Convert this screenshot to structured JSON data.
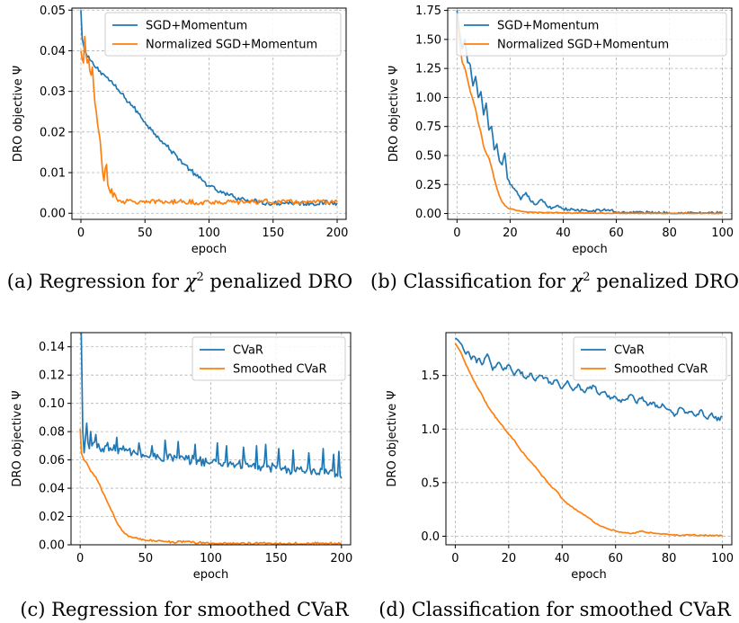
{
  "colors": {
    "blue": "#1f77b4",
    "orange": "#ff7f0e",
    "grid": "#b0b0b0"
  },
  "captions": {
    "a": {
      "prefix": "(a)  Regression for ",
      "symbol": "χ",
      "sup": "2",
      "suffix": " penalized DRO"
    },
    "b": {
      "prefix": "(b)  Classification for ",
      "symbol": "χ",
      "sup": "2",
      "suffix": " penalized DRO"
    },
    "c": {
      "text": "(c)  Regression for smoothed CVaR"
    },
    "d": {
      "text": "(d)  Classification for smoothed CVaR"
    }
  },
  "chart_data": [
    {
      "id": "a",
      "type": "line",
      "xlabel": "epoch",
      "ylabel": "DRO objective Ψ",
      "xlim": [
        -7,
        207
      ],
      "ylim": [
        -0.0015,
        0.0505
      ],
      "xticks": [
        0,
        50,
        100,
        150,
        200
      ],
      "yticks": [
        0.0,
        0.01,
        0.02,
        0.03,
        0.04,
        0.05
      ],
      "ytick_labels": [
        "0.00",
        "0.01",
        "0.02",
        "0.03",
        "0.04",
        "0.05"
      ],
      "grid": true,
      "legend": "top-right",
      "series": [
        {
          "name": "SGD+Momentum",
          "color": "#1f77b4",
          "x": [
            0,
            1,
            3,
            5,
            10,
            15,
            20,
            25,
            30,
            35,
            40,
            45,
            50,
            55,
            60,
            65,
            70,
            75,
            80,
            85,
            90,
            95,
            100,
            105,
            110,
            115,
            120,
            125,
            130,
            135,
            140,
            145,
            150,
            160,
            170,
            180,
            190,
            200
          ],
          "y": [
            0.05,
            0.043,
            0.04,
            0.0385,
            0.0365,
            0.035,
            0.0335,
            0.0318,
            0.03,
            0.0282,
            0.0265,
            0.0245,
            0.0225,
            0.0205,
            0.019,
            0.0172,
            0.0155,
            0.014,
            0.0122,
            0.0108,
            0.0092,
            0.008,
            0.0068,
            0.0058,
            0.005,
            0.0045,
            0.004,
            0.0036,
            0.0033,
            0.003,
            0.0028,
            0.0025,
            0.0025,
            0.0026,
            0.0025,
            0.0024,
            0.0026,
            0.0025
          ],
          "noise": 0.0006
        },
        {
          "name": "Normalized SGD+Momentum",
          "color": "#ff7f0e",
          "x": [
            0,
            1,
            2,
            3,
            4,
            5,
            6,
            7,
            8,
            9,
            10,
            11,
            12,
            13,
            14,
            15,
            16,
            17,
            18,
            19,
            20,
            21,
            22,
            23,
            24,
            25,
            26,
            28,
            30,
            35,
            40,
            50,
            60,
            70,
            80,
            90,
            100,
            120,
            140,
            160,
            180,
            200
          ],
          "y": [
            0.04,
            0.038,
            0.037,
            0.0435,
            0.039,
            0.037,
            0.038,
            0.035,
            0.034,
            0.036,
            0.031,
            0.027,
            0.025,
            0.022,
            0.02,
            0.018,
            0.014,
            0.01,
            0.008,
            0.011,
            0.012,
            0.007,
            0.006,
            0.005,
            0.006,
            0.004,
            0.005,
            0.0035,
            0.0032,
            0.0028,
            0.003,
            0.0025,
            0.003,
            0.0027,
            0.003,
            0.0026,
            0.0028,
            0.0027,
            0.0029,
            0.0028,
            0.0027,
            0.0028
          ],
          "noise": 0.0006
        }
      ]
    },
    {
      "id": "b",
      "type": "line",
      "xlabel": "epoch",
      "ylabel": "DRO objective Ψ",
      "xlim": [
        -3.5,
        103.5
      ],
      "ylim": [
        -0.05,
        1.77
      ],
      "xticks": [
        0,
        20,
        40,
        60,
        80,
        100
      ],
      "yticks": [
        0.0,
        0.25,
        0.5,
        0.75,
        1.0,
        1.25,
        1.5,
        1.75
      ],
      "ytick_labels": [
        "0.00",
        "0.25",
        "0.50",
        "0.75",
        "1.00",
        "1.25",
        "1.50",
        "1.75"
      ],
      "grid": true,
      "legend": "top-right",
      "series": [
        {
          "name": "SGD+Momentum",
          "color": "#1f77b4",
          "x": [
            0,
            1,
            2,
            3,
            4,
            5,
            6,
            7,
            8,
            9,
            10,
            11,
            12,
            13,
            14,
            15,
            16,
            17,
            18,
            19,
            20,
            22,
            24,
            26,
            28,
            30,
            32,
            34,
            36,
            38,
            40,
            45,
            50,
            55,
            58,
            60,
            65,
            70,
            80,
            90,
            100
          ],
          "y": [
            1.75,
            1.55,
            1.42,
            1.5,
            1.3,
            1.28,
            1.1,
            1.18,
            1.0,
            1.05,
            0.85,
            0.95,
            0.72,
            0.75,
            0.55,
            0.6,
            0.45,
            0.42,
            0.52,
            0.3,
            0.25,
            0.2,
            0.12,
            0.18,
            0.1,
            0.08,
            0.12,
            0.06,
            0.05,
            0.07,
            0.04,
            0.03,
            0.02,
            0.03,
            0.03,
            0.01,
            0.01,
            0.01,
            0.005,
            0.005,
            0.005
          ],
          "noise": 0.012
        },
        {
          "name": "Normalized SGD+Momentum",
          "color": "#ff7f0e",
          "x": [
            0,
            1,
            2,
            3,
            4,
            5,
            6,
            7,
            8,
            9,
            10,
            11,
            12,
            13,
            14,
            15,
            16,
            17,
            18,
            19,
            20,
            22,
            24,
            26,
            30,
            35,
            40,
            50,
            60,
            80,
            100
          ],
          "y": [
            1.7,
            1.45,
            1.3,
            1.25,
            1.15,
            1.05,
            0.98,
            0.9,
            0.78,
            0.7,
            0.58,
            0.52,
            0.48,
            0.4,
            0.3,
            0.22,
            0.15,
            0.1,
            0.07,
            0.05,
            0.04,
            0.03,
            0.02,
            0.015,
            0.01,
            0.008,
            0.005,
            0.003,
            0.002,
            0.001,
            0.001
          ],
          "noise": 0.004
        }
      ]
    },
    {
      "id": "c",
      "type": "line",
      "xlabel": "epoch",
      "ylabel": "DRO objective Ψ",
      "xlim": [
        -7,
        207
      ],
      "ylim": [
        0.0,
        0.15
      ],
      "xticks": [
        0,
        50,
        100,
        150,
        200
      ],
      "yticks": [
        0.0,
        0.02,
        0.04,
        0.06,
        0.08,
        0.1,
        0.12,
        0.14
      ],
      "ytick_labels": [
        "0.00",
        "0.02",
        "0.04",
        "0.06",
        "0.08",
        "0.10",
        "0.12",
        "0.14"
      ],
      "grid": true,
      "legend": "top-right",
      "series": [
        {
          "name": "CVaR",
          "color": "#1f77b4",
          "x": [
            0,
            2,
            3,
            4,
            5,
            6,
            7,
            8,
            9,
            10,
            15,
            20,
            25,
            30,
            40,
            50,
            60,
            70,
            80,
            90,
            100,
            110,
            120,
            130,
            140,
            150,
            160,
            170,
            180,
            190,
            196,
            198,
            200
          ],
          "y": [
            0.2,
            0.08,
            0.065,
            0.075,
            0.085,
            0.072,
            0.068,
            0.08,
            0.07,
            0.072,
            0.068,
            0.07,
            0.067,
            0.068,
            0.065,
            0.063,
            0.062,
            0.062,
            0.06,
            0.06,
            0.058,
            0.058,
            0.057,
            0.056,
            0.055,
            0.054,
            0.053,
            0.052,
            0.051,
            0.05,
            0.05,
            0.047,
            0.047
          ],
          "noise": 0.0035,
          "spikes": [
            [
              5,
              0.086
            ],
            [
              12,
              0.078
            ],
            [
              28,
              0.076
            ],
            [
              45,
              0.072
            ],
            [
              55,
              0.07
            ],
            [
              65,
              0.074
            ],
            [
              75,
              0.073
            ],
            [
              88,
              0.071
            ],
            [
              105,
              0.072
            ],
            [
              112,
              0.07
            ],
            [
              125,
              0.069
            ],
            [
              135,
              0.07
            ],
            [
              142,
              0.071
            ],
            [
              152,
              0.068
            ],
            [
              163,
              0.067
            ],
            [
              175,
              0.065
            ],
            [
              186,
              0.068
            ],
            [
              194,
              0.064
            ],
            [
              198,
              0.066
            ]
          ]
        },
        {
          "name": "Smoothed CVaR",
          "color": "#ff7f0e",
          "x": [
            0,
            1,
            2,
            3,
            4,
            5,
            6,
            8,
            10,
            12,
            14,
            16,
            18,
            20,
            22,
            24,
            26,
            28,
            30,
            32,
            34,
            36,
            38,
            40,
            45,
            50,
            60,
            70,
            80,
            100,
            120,
            150,
            200
          ],
          "y": [
            0.082,
            0.065,
            0.062,
            0.06,
            0.059,
            0.058,
            0.056,
            0.052,
            0.05,
            0.048,
            0.044,
            0.04,
            0.036,
            0.032,
            0.028,
            0.024,
            0.02,
            0.016,
            0.013,
            0.01,
            0.008,
            0.007,
            0.006,
            0.005,
            0.004,
            0.003,
            0.003,
            0.002,
            0.002,
            0.001,
            0.001,
            0.001,
            0.001
          ],
          "noise": 0.0008
        }
      ]
    },
    {
      "id": "d",
      "type": "line",
      "xlabel": "epoch",
      "ylabel": "DRO objective Ψ",
      "xlim": [
        -3.5,
        103.5
      ],
      "ylim": [
        -0.08,
        1.9
      ],
      "xticks": [
        0,
        20,
        40,
        60,
        80,
        100
      ],
      "yticks": [
        0.0,
        0.5,
        1.0,
        1.5
      ],
      "ytick_labels": [
        "0.0",
        "0.5",
        "1.0",
        "1.5"
      ],
      "grid": true,
      "legend": "top-right",
      "series": [
        {
          "name": "CVaR",
          "color": "#1f77b4",
          "x": [
            0,
            1,
            2,
            3,
            4,
            5,
            6,
            7,
            8,
            9,
            10,
            12,
            14,
            16,
            18,
            20,
            22,
            24,
            26,
            28,
            30,
            32,
            34,
            36,
            38,
            40,
            42,
            44,
            46,
            48,
            50,
            52,
            54,
            56,
            58,
            60,
            62,
            64,
            66,
            68,
            70,
            72,
            74,
            76,
            78,
            80,
            82,
            84,
            86,
            88,
            90,
            92,
            94,
            96,
            98,
            100
          ],
          "y": [
            1.85,
            1.83,
            1.8,
            1.75,
            1.7,
            1.72,
            1.65,
            1.68,
            1.62,
            1.66,
            1.6,
            1.7,
            1.55,
            1.62,
            1.55,
            1.6,
            1.5,
            1.55,
            1.48,
            1.52,
            1.45,
            1.5,
            1.48,
            1.42,
            1.46,
            1.38,
            1.45,
            1.36,
            1.42,
            1.35,
            1.38,
            1.4,
            1.32,
            1.35,
            1.28,
            1.3,
            1.25,
            1.28,
            1.32,
            1.24,
            1.3,
            1.22,
            1.25,
            1.2,
            1.22,
            1.18,
            1.12,
            1.2,
            1.15,
            1.16,
            1.12,
            1.18,
            1.1,
            1.15,
            1.08,
            1.12
          ],
          "noise": 0.02
        },
        {
          "name": "Smoothed CVaR",
          "color": "#ff7f0e",
          "x": [
            0,
            2,
            4,
            6,
            8,
            10,
            12,
            14,
            16,
            18,
            20,
            22,
            24,
            26,
            28,
            30,
            32,
            34,
            36,
            38,
            40,
            42,
            44,
            46,
            48,
            50,
            52,
            54,
            56,
            58,
            60,
            62,
            64,
            66,
            68,
            70,
            72,
            74,
            76,
            80,
            85,
            90,
            95,
            100
          ],
          "y": [
            1.8,
            1.72,
            1.6,
            1.5,
            1.4,
            1.32,
            1.22,
            1.15,
            1.08,
            1.02,
            0.95,
            0.9,
            0.82,
            0.76,
            0.7,
            0.65,
            0.58,
            0.52,
            0.46,
            0.42,
            0.35,
            0.3,
            0.27,
            0.23,
            0.2,
            0.17,
            0.13,
            0.1,
            0.08,
            0.06,
            0.05,
            0.04,
            0.03,
            0.025,
            0.04,
            0.05,
            0.035,
            0.03,
            0.025,
            0.015,
            0.01,
            0.01,
            0.008,
            0.005
          ],
          "noise": 0.006
        }
      ]
    }
  ]
}
